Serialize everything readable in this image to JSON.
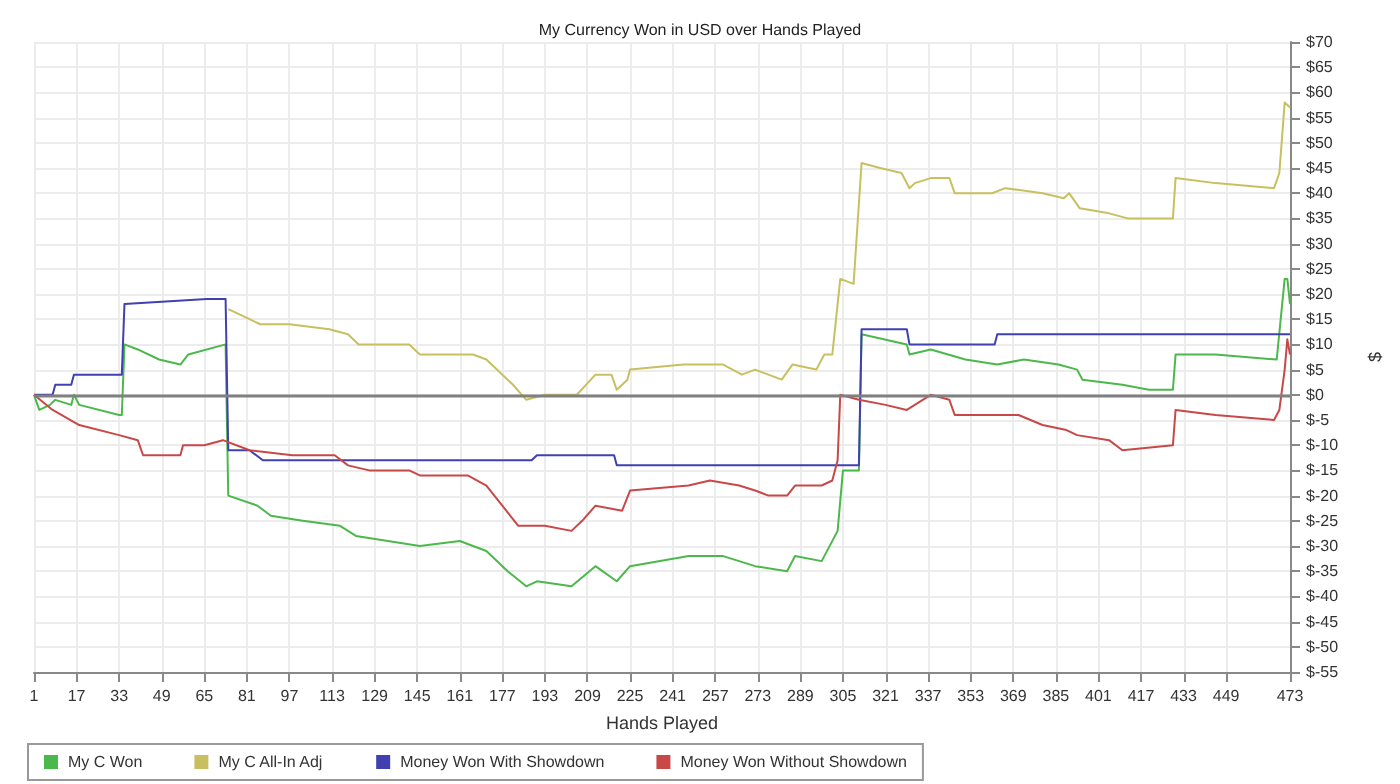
{
  "chart_data": {
    "type": "line",
    "title": "My Currency Won in USD over Hands Played",
    "xlabel": "Hands Played",
    "ylabel": "$",
    "xlim": [
      1,
      473
    ],
    "xticks": [
      1,
      17,
      33,
      49,
      65,
      81,
      97,
      113,
      129,
      145,
      161,
      177,
      193,
      209,
      225,
      241,
      257,
      273,
      289,
      305,
      321,
      337,
      353,
      369,
      385,
      401,
      417,
      433,
      449,
      473
    ],
    "ylim": [
      -55,
      70
    ],
    "yticks": [
      {
        "value": -55,
        "label": "$-55"
      },
      {
        "value": -50,
        "label": "$-50"
      },
      {
        "value": -45,
        "label": "$-45"
      },
      {
        "value": -40,
        "label": "$-40"
      },
      {
        "value": -35,
        "label": "$-35"
      },
      {
        "value": -30,
        "label": "$-30"
      },
      {
        "value": -25,
        "label": "$-25"
      },
      {
        "value": -20,
        "label": "$-20"
      },
      {
        "value": -15,
        "label": "$-15"
      },
      {
        "value": -10,
        "label": "$-10"
      },
      {
        "value": -5,
        "label": "$-5"
      },
      {
        "value": 0,
        "label": "$0"
      },
      {
        "value": 5,
        "label": "$5"
      },
      {
        "value": 10,
        "label": "$10"
      },
      {
        "value": 15,
        "label": "$15"
      },
      {
        "value": 20,
        "label": "$20"
      },
      {
        "value": 25,
        "label": "$25"
      },
      {
        "value": 30,
        "label": "$30"
      },
      {
        "value": 35,
        "label": "$35"
      },
      {
        "value": 40,
        "label": "$40"
      },
      {
        "value": 45,
        "label": "$45"
      },
      {
        "value": 50,
        "label": "$50"
      },
      {
        "value": 55,
        "label": "$55"
      },
      {
        "value": 60,
        "label": "$60"
      },
      {
        "value": 65,
        "label": "$65"
      },
      {
        "value": 70,
        "label": "$70"
      }
    ],
    "grid": true,
    "legend": "bottom left",
    "marker": "none",
    "line_style": "solid",
    "ref_lines": [
      {
        "axis": "y",
        "value": 0,
        "color": "#808080"
      }
    ],
    "series": [
      {
        "name": "My C Won",
        "color": "#4cb84c",
        "x": [
          1,
          3,
          7,
          9,
          15,
          16,
          18,
          33,
          34,
          35,
          40,
          48,
          56,
          59,
          73,
          74,
          85,
          90,
          102,
          116,
          122,
          146,
          161,
          171,
          179,
          186,
          190,
          203,
          212,
          220,
          225,
          247,
          260,
          272,
          284,
          287,
          297,
          303,
          305,
          311,
          312,
          329,
          330,
          338,
          351,
          363,
          373,
          386,
          393,
          395,
          410,
          420,
          429,
          430,
          445,
          468,
          471,
          472,
          473
        ],
        "values": [
          0,
          -3,
          -2,
          -1,
          -2,
          0,
          -2,
          -4,
          -4,
          10,
          9,
          7,
          6,
          8,
          10,
          -20,
          -22,
          -24,
          -25,
          -26,
          -28,
          -30,
          -29,
          -31,
          -35,
          -38,
          -37,
          -38,
          -34,
          -37,
          -34,
          -32,
          -32,
          -34,
          -35,
          -32,
          -33,
          -27,
          -15,
          -15,
          12,
          10,
          8,
          9,
          7,
          6,
          7,
          6,
          5,
          3,
          2,
          1,
          1,
          8,
          8,
          7,
          23,
          23,
          18
        ]
      },
      {
        "name": "My C All-In Adj",
        "color": "#c8c060",
        "x": [
          74,
          82,
          86,
          97,
          112,
          119,
          123,
          142,
          146,
          166,
          171,
          179,
          181,
          186,
          193,
          205,
          212,
          218,
          220,
          224,
          225,
          245,
          260,
          267,
          272,
          282,
          286,
          295,
          298,
          301,
          304,
          309,
          312,
          319,
          327,
          330,
          332,
          338,
          345,
          347,
          351,
          361,
          366,
          380,
          388,
          390,
          394,
          405,
          412,
          429,
          430,
          445,
          467,
          469,
          471,
          473
        ],
        "values": [
          17,
          15,
          14,
          14,
          13,
          12,
          10,
          10,
          8,
          8,
          7,
          3,
          2,
          -1,
          0,
          0,
          4,
          4,
          1,
          3,
          5,
          6,
          6,
          4,
          5,
          3,
          6,
          5,
          8,
          8,
          23,
          22,
          46,
          45,
          44,
          41,
          42,
          43,
          43,
          40,
          40,
          40,
          41,
          40,
          39,
          40,
          37,
          36,
          35,
          35,
          43,
          42,
          41,
          44,
          58,
          57
        ]
      },
      {
        "name": "Money Won With Showdown",
        "color": "#4040b0",
        "x": [
          1,
          8,
          9,
          15,
          16,
          34,
          35,
          66,
          73,
          74,
          82,
          87,
          188,
          190,
          219,
          220,
          311,
          312,
          329,
          330,
          362,
          363,
          473
        ],
        "values": [
          0,
          0,
          2,
          2,
          4,
          4,
          18,
          19,
          19,
          -11,
          -11,
          -13,
          -13,
          -12,
          -12,
          -14,
          -14,
          13,
          13,
          10,
          10,
          12,
          12
        ]
      },
      {
        "name": "Money Won Without Showdown",
        "color": "#c84848",
        "x": [
          1,
          8,
          18,
          33,
          40,
          42,
          49,
          56,
          57,
          65,
          72,
          82,
          98,
          114,
          119,
          127,
          142,
          146,
          164,
          171,
          177,
          183,
          193,
          203,
          207,
          212,
          222,
          225,
          247,
          255,
          266,
          272,
          277,
          284,
          287,
          297,
          301,
          303,
          304,
          311,
          321,
          329,
          338,
          345,
          347,
          353,
          371,
          380,
          389,
          393,
          405,
          410,
          429,
          430,
          445,
          467,
          469,
          471,
          472,
          473
        ],
        "values": [
          0,
          -3,
          -6,
          -8,
          -9,
          -12,
          -12,
          -12,
          -10,
          -10,
          -9,
          -11,
          -12,
          -12,
          -14,
          -15,
          -15,
          -16,
          -16,
          -18,
          -22,
          -26,
          -26,
          -27,
          -25,
          -22,
          -23,
          -19,
          -18,
          -17,
          -18,
          -19,
          -20,
          -20,
          -18,
          -18,
          -17,
          -13,
          0,
          -1,
          -2,
          -3,
          0,
          -1,
          -4,
          -4,
          -4,
          -6,
          -7,
          -8,
          -9,
          -11,
          -10,
          -3,
          -4,
          -5,
          -3,
          5,
          11,
          8
        ]
      }
    ]
  }
}
